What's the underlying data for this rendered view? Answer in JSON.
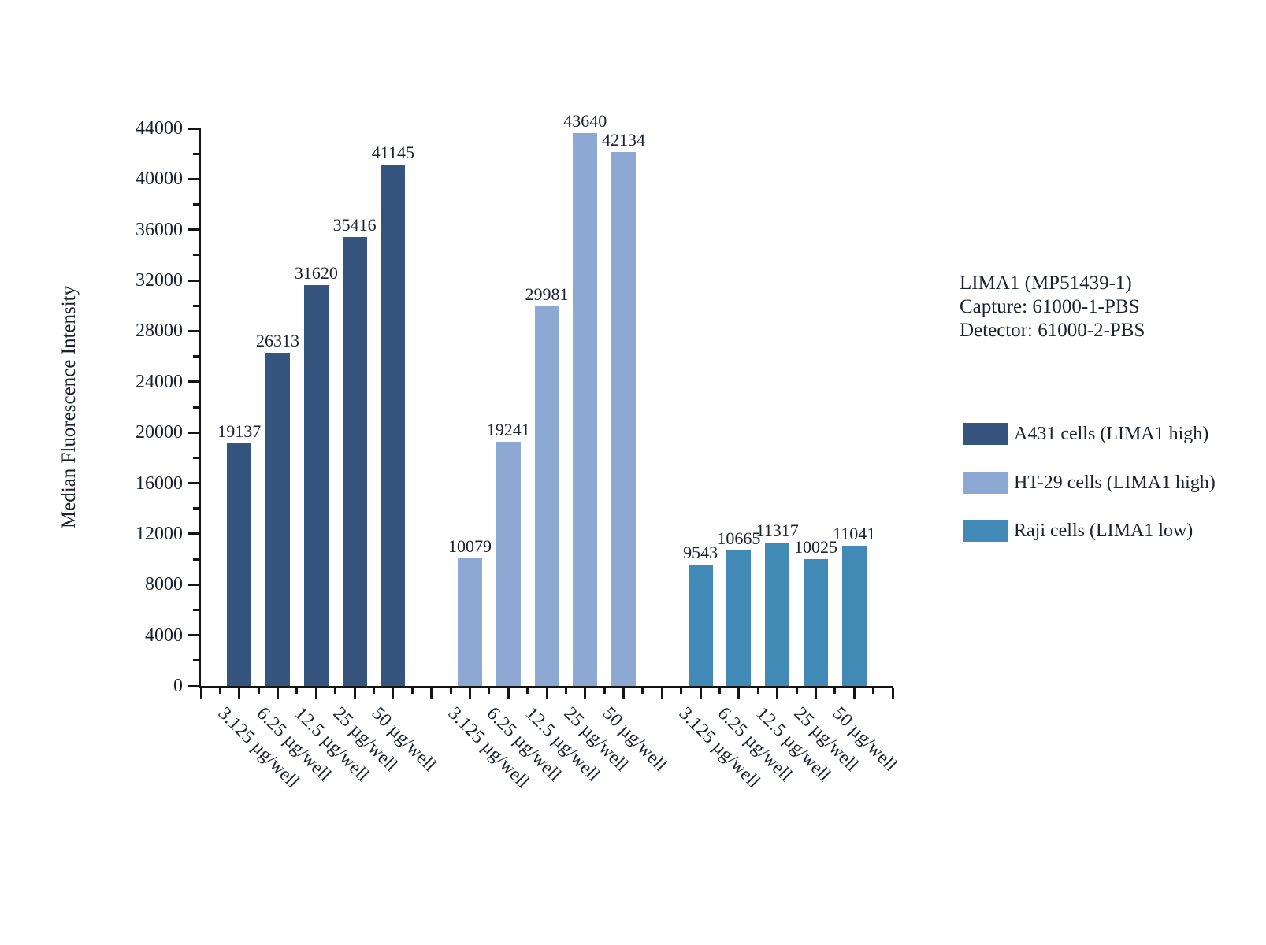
{
  "page": {
    "background": "#ffffff"
  },
  "chart_data": {
    "type": "bar",
    "title": "",
    "ylabel": "Median Fluorescence Intensity",
    "xlabel": "",
    "ylim": [
      0,
      44000
    ],
    "y_major_tick": 4000,
    "y_minor_tick": 2000,
    "y_tick_labels": [
      "0",
      "4000",
      "8000",
      "12000",
      "16000",
      "20000",
      "24000",
      "28000",
      "32000",
      "36000",
      "40000",
      "44000"
    ],
    "categories": [
      "3.125 µg/well",
      "6.25 µg/well",
      "12.5 µg/well",
      "25 µg/well",
      "50 µg/well"
    ],
    "series": [
      {
        "name": "A431 cells (LIMA1 high)",
        "color": "#35547E",
        "values": [
          19137,
          26313,
          31620,
          35416,
          41145
        ]
      },
      {
        "name": "HT-29 cells (LIMA1 high)",
        "color": "#8DA8D2",
        "values": [
          10079,
          19241,
          29981,
          43640,
          42134
        ]
      },
      {
        "name": "Raji cells (LIMA1 low)",
        "color": "#418AB6",
        "values": [
          9543,
          10665,
          11317,
          10025,
          11041
        ]
      }
    ],
    "grid": false,
    "legend_position": "right",
    "bar_value_labels": true,
    "axis_color": "#141414",
    "text_color": "#1c2130"
  },
  "annotation": {
    "line1": "LIMA1 (MP51439-1)",
    "line2": "Capture: 61000-1-PBS",
    "line3": "Detector: 61000-2-PBS"
  }
}
